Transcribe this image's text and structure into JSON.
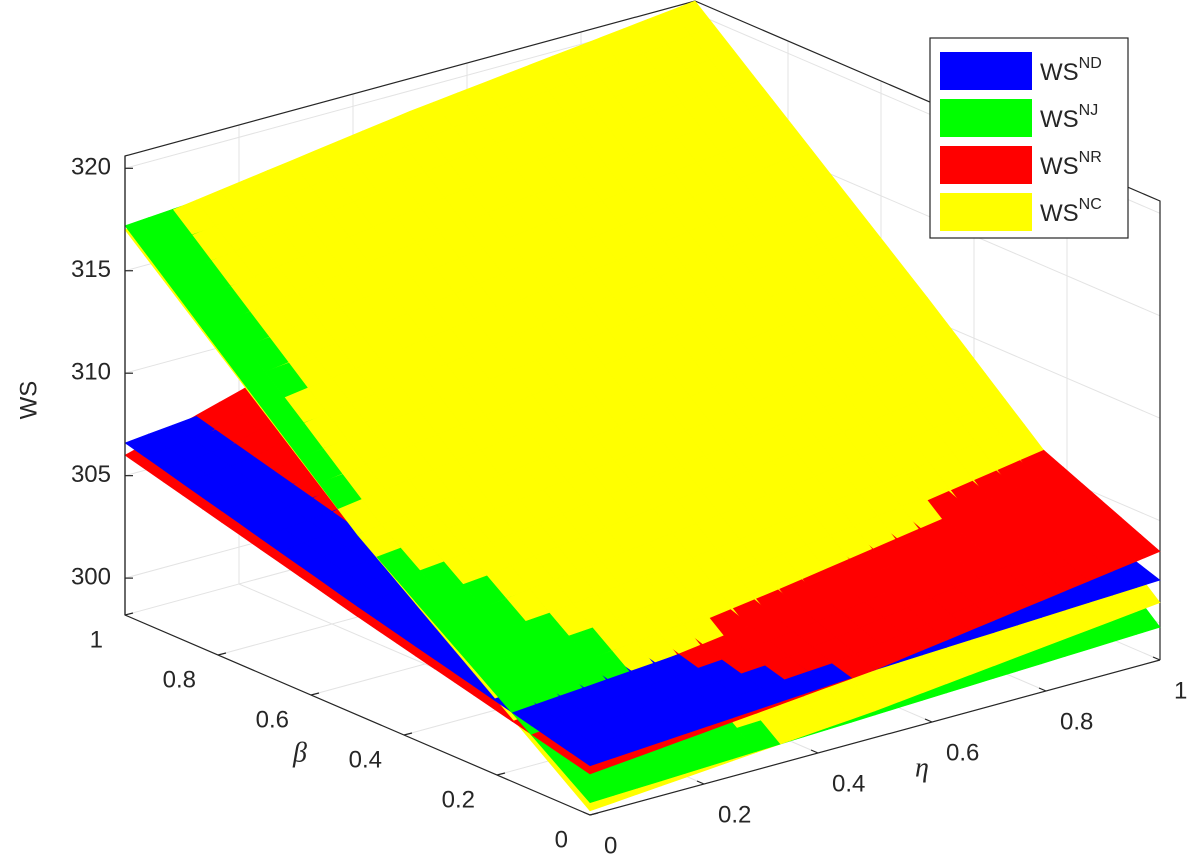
{
  "chart_data": {
    "type": "surface3d",
    "zlabel": "WS",
    "xlabel": "η",
    "ylabel": "β",
    "x": [
      0,
      0.5,
      1
    ],
    "y": [
      0,
      0.5,
      1
    ],
    "xlim": [
      0,
      1
    ],
    "ylim": [
      0,
      1
    ],
    "zlim": [
      298.2,
      320.6
    ],
    "xticks": [
      0,
      0.2,
      0.4,
      0.6,
      0.8,
      1
    ],
    "yticks": [
      0,
      0.2,
      0.4,
      0.6,
      0.8,
      1
    ],
    "zticks": [
      300,
      305,
      310,
      315,
      320
    ],
    "grid": true,
    "legend": "upper right",
    "series": [
      {
        "name": "WS",
        "name_sup": "ND",
        "color": "#0000ff",
        "values": [
          [
            300.6,
            303.5,
            306.6
          ],
          [
            301.5,
            305,
            308
          ],
          [
            302.1,
            306,
            309.5
          ]
        ]
      },
      {
        "name": "WS",
        "name_sup": "NJ",
        "color": "#00ff00",
        "values": [
          [
            298.8,
            307,
            317.2
          ],
          [
            299.3,
            308.5,
            318.2
          ],
          [
            299.8,
            310,
            319.5
          ]
        ]
      },
      {
        "name": "WS",
        "name_sup": "NR",
        "color": "#ff0000",
        "values": [
          [
            300.2,
            303,
            306
          ],
          [
            301.5,
            306,
            310
          ],
          [
            303.5,
            308.5,
            313
          ]
        ]
      },
      {
        "name": "WS",
        "name_sup": "NC",
        "color": "#ffff00",
        "values": [
          [
            298.4,
            307,
            317
          ],
          [
            299.5,
            309,
            319
          ],
          [
            301,
            311,
            320.6
          ]
        ]
      }
    ]
  }
}
